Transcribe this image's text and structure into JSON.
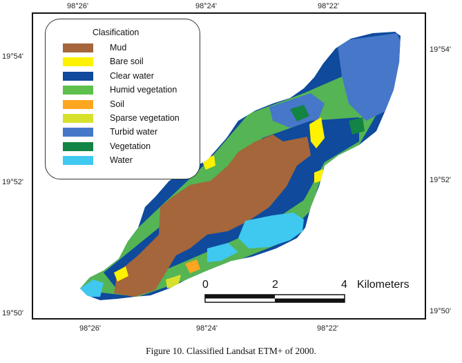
{
  "coordinates": {
    "top_labels": [
      "98°26'",
      "98°24'",
      "98°22'"
    ],
    "bottom_labels": [
      "98°26'",
      "98°24'",
      "98°22'"
    ],
    "left_labels": [
      "19°54'",
      "19°52'",
      "19°50'"
    ],
    "right_labels": [
      "19°54'",
      "19°52'",
      "19°50'"
    ]
  },
  "legend": {
    "title": "Clasification",
    "items": [
      {
        "label": "Mud",
        "color": "#A4663A"
      },
      {
        "label": "Bare soil",
        "color": "#FFF200"
      },
      {
        "label": "Clear water",
        "color": "#0F4A9C"
      },
      {
        "label": "Humid vegetation",
        "color": "#5DC04C"
      },
      {
        "label": "Soil",
        "color": "#FFA620"
      },
      {
        "label": "Sparse vegetation",
        "color": "#D7E12C"
      },
      {
        "label": "Turbid water",
        "color": "#4677C9"
      },
      {
        "label": "Vegetation",
        "color": "#138443"
      },
      {
        "label": "Water",
        "color": "#3FC8F0"
      }
    ]
  },
  "scale_bar": {
    "ticks": [
      "0",
      "2",
      "4"
    ],
    "unit": "Kilometers"
  },
  "caption": "Figure 10. Classified Landsat ETM+ of 2000."
}
